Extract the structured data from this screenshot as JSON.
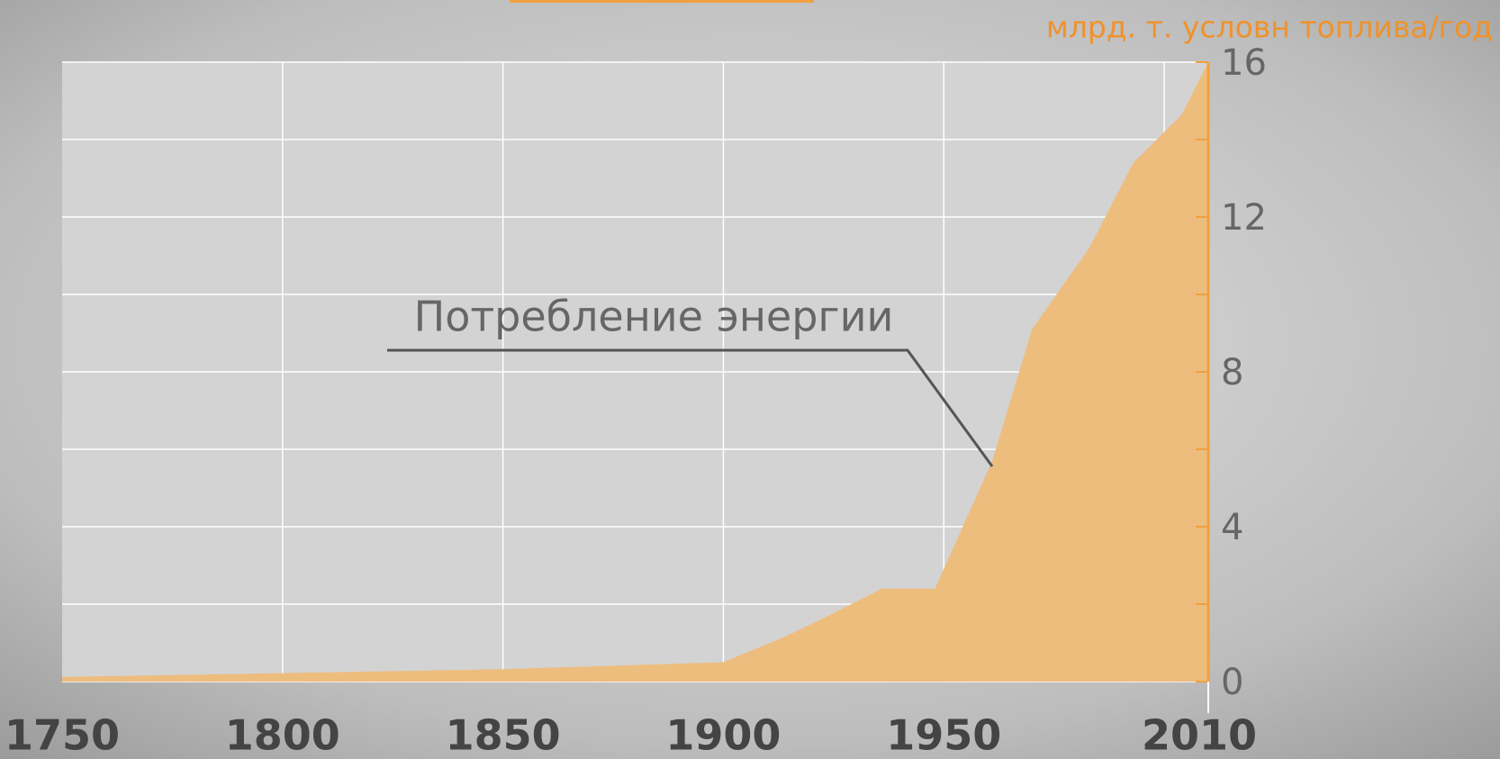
{
  "chart_data": {
    "type": "area",
    "y_axis_label": "млрд. т. условн топлива/год",
    "annotation": "Потребление энергии",
    "series": [
      {
        "name": "Потребление энергии",
        "color": "#edbd7e",
        "x": [
          1750,
          1850,
          1900,
          1914,
          1922,
          1936,
          1948,
          1961,
          1970,
          1983,
          1993,
          2004,
          2010
        ],
        "values": [
          0.12,
          0.32,
          0.5,
          1.16,
          1.6,
          2.4,
          2.4,
          5.7,
          9.1,
          11.2,
          13.4,
          14.65,
          16
        ]
      }
    ],
    "xlim": [
      1750,
      2010
    ],
    "xticks": [
      1750,
      1800,
      1850,
      1900,
      1950,
      2010
    ],
    "xgrid": [
      1800,
      1850,
      1900,
      1950,
      2000
    ],
    "ylim": [
      0,
      16
    ],
    "yticks": [
      0,
      4,
      8,
      12,
      16
    ],
    "yminor_ticks": [
      2,
      6,
      10,
      14
    ],
    "grid": true,
    "axis_color": "#f0a040"
  }
}
